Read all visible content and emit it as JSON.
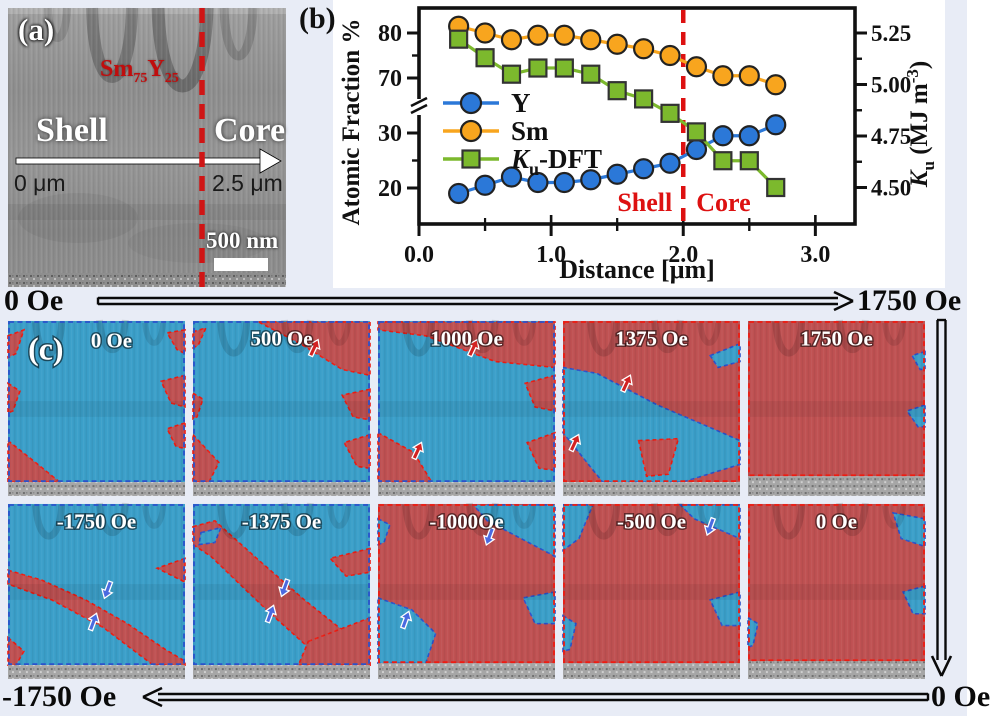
{
  "panel_a": {
    "label": "(a)",
    "composition": {
      "el1": "Sm",
      "sub1": "75",
      "el2": "Y",
      "sub2": "25"
    },
    "region_left": "Shell",
    "region_right": "Core",
    "arrow_start": "0 μm",
    "arrow_end": "2.5 μm",
    "scalebar": "500 nm"
  },
  "panel_b": {
    "label": "(b)"
  },
  "chart_data": {
    "type": "line",
    "title": "",
    "xlabel": "Distance [μm]",
    "ylabel_left": "Atomic Fraction %",
    "ylabel_right_parts": {
      "italic": "K",
      "sub": "u",
      "rest": " (MJ m",
      "sup": "-3",
      "end": ")"
    },
    "x_axis": {
      "range": [
        0,
        3.3
      ],
      "major": [
        {
          "v": 0,
          "label": "0.0"
        },
        {
          "v": 1,
          "label": "1.0"
        },
        {
          "v": 2,
          "label": "2.0"
        },
        {
          "v": 3,
          "label": "3.0"
        }
      ],
      "minor": [
        0.5,
        1.5,
        2.5
      ]
    },
    "left_axis": {
      "broken": true,
      "major": [
        {
          "v": 20,
          "label": "20"
        },
        {
          "v": 30,
          "label": "30"
        },
        {
          "v": 70,
          "label": "70"
        },
        {
          "v": 80,
          "label": "80"
        }
      ],
      "minor": [
        25,
        75
      ]
    },
    "right_axis": {
      "major": [
        {
          "v": 4.5,
          "label": "4.50"
        },
        {
          "v": 4.75,
          "label": "4.75"
        },
        {
          "v": 5.0,
          "label": "5.00"
        },
        {
          "v": 5.25,
          "label": "5.25"
        }
      ],
      "minor": [
        4.625,
        4.875,
        5.125
      ]
    },
    "x": [
      0.3,
      0.5,
      0.7,
      0.9,
      1.1,
      1.3,
      1.5,
      1.7,
      1.9,
      2.1,
      2.3,
      2.5,
      2.7
    ],
    "series": [
      {
        "name": "Y",
        "axis": "left",
        "color": "#2b78d8",
        "marker": "circle",
        "values": [
          19,
          20.5,
          22,
          21,
          21,
          21.5,
          22.5,
          23.5,
          24.5,
          27,
          29.5,
          29.5,
          31.5
        ]
      },
      {
        "name": "Sm",
        "axis": "left",
        "color": "#f8a51e",
        "marker": "circle",
        "values": [
          81.5,
          80,
          78.5,
          79.5,
          79.5,
          78.5,
          77.5,
          76.5,
          75,
          72.5,
          70.5,
          70.5,
          68.5
        ]
      },
      {
        "name": "Ku-DFT",
        "axis": "right",
        "color": "#7cb92d",
        "marker": "square",
        "name_parts": {
          "italic": "K",
          "sub": "u",
          "rest": "-DFT"
        },
        "values": [
          5.22,
          5.13,
          5.05,
          5.08,
          5.08,
          5.05,
          4.97,
          4.93,
          4.86,
          4.77,
          4.63,
          4.63,
          4.5
        ]
      }
    ],
    "annotations": {
      "divider_x": 2.0,
      "left_label": "Shell",
      "right_label": "Core",
      "color": "#dd1111"
    },
    "legend_position": "middle-left",
    "grid": false
  },
  "panel_c": {
    "label": "(c)",
    "top_sweep": {
      "from": "0 Oe",
      "to": "1750 Oe"
    },
    "bottom_sweep": {
      "from": "0 Oe",
      "to": "-1750 Oe"
    },
    "cells": [
      {
        "label": "0 Oe",
        "base": "blue"
      },
      {
        "label": "500 Oe",
        "base": "blue"
      },
      {
        "label": "1000 Oe",
        "base": "blue"
      },
      {
        "label": "1375 Oe",
        "base": "red"
      },
      {
        "label": "1750 Oe",
        "base": "red"
      },
      {
        "label": "-1750 Oe",
        "base": "blue"
      },
      {
        "label": "-1375 Oe",
        "base": "blue"
      },
      {
        "label": "-1000Oe",
        "base": "red"
      },
      {
        "label": "-500 Oe",
        "base": "red"
      },
      {
        "label": "0 Oe",
        "base": "red"
      }
    ]
  },
  "colors": {
    "background": "#e8ecf6",
    "panel_bg": "#ffffff",
    "blue_domain": "#3b9fc9",
    "red_domain": "#bf5152",
    "dash_red": "#ee1c12",
    "dash_blue": "#2a52cc",
    "annotation_red": "#dd1111",
    "substrate": "#a6a6a6"
  }
}
